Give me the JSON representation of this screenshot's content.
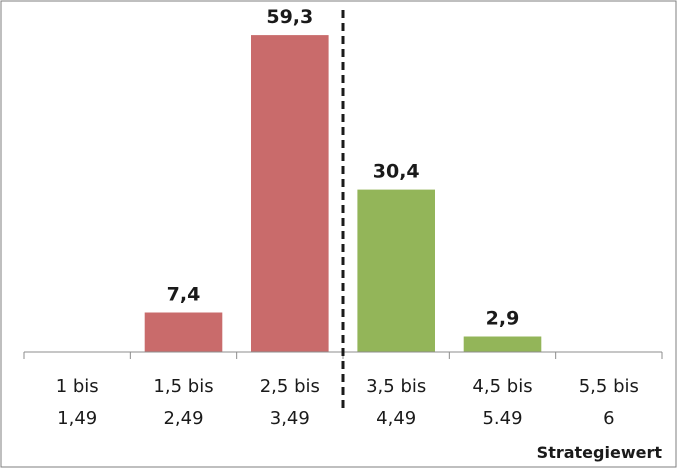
{
  "chart_data": {
    "type": "bar",
    "categories": [
      [
        "1 bis",
        "1,49"
      ],
      [
        "1,5 bis",
        "2,49"
      ],
      [
        "2,5 bis",
        "3,49"
      ],
      [
        "3,5 bis",
        "4,49"
      ],
      [
        "4,5 bis",
        "5.49"
      ],
      [
        "5,5 bis",
        "6"
      ]
    ],
    "values": [
      null,
      7.4,
      59.3,
      30.4,
      2.9,
      null
    ],
    "value_labels": [
      "",
      "7,4",
      "59,3",
      "30,4",
      "2,9",
      ""
    ],
    "bar_colors": [
      "#C96B6B",
      "#C96B6B",
      "#C96B6B",
      "#93B559",
      "#93B559",
      "#93B559"
    ],
    "ylim": [
      0,
      64
    ],
    "title": "",
    "xlabel": "Strategiewert",
    "ylabel": "",
    "grid": false,
    "legend": "none",
    "divider": {
      "style": "dashed",
      "between_categories": [
        2,
        3
      ]
    }
  }
}
